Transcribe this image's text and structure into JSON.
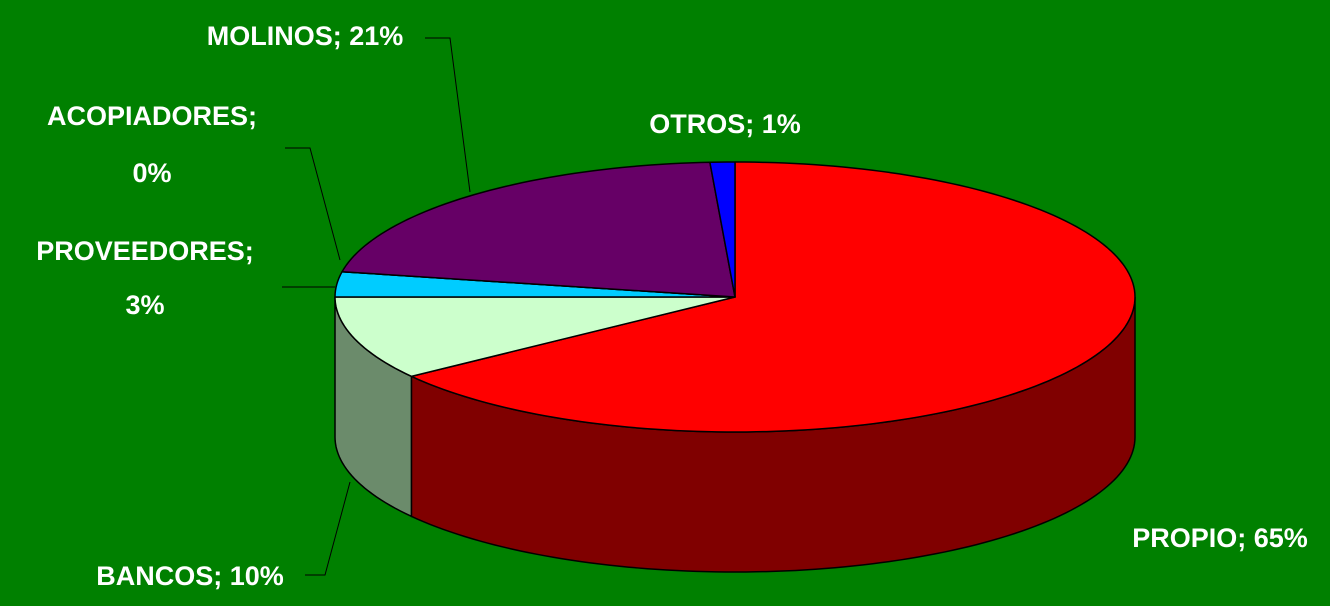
{
  "chart_data": {
    "type": "pie3d",
    "values": [
      65,
      10,
      3,
      0,
      21,
      1
    ],
    "labels": [
      [
        "PROPIO; 65%"
      ],
      [
        "BANCOS; 10%"
      ],
      [
        "PROVEEDORES;",
        "3%"
      ],
      [
        "ACOPIADORES;",
        "0%"
      ],
      [
        "MOLINOS; 21%"
      ],
      [
        "OTROS; 1%"
      ]
    ],
    "colors": [
      "#ff0000",
      "#ccffcc",
      "#00ccff",
      "#ffff99",
      "#660066",
      "#0000ff"
    ],
    "side_colors": [
      "#800000",
      "#6b8b6b",
      "#0099cc",
      "#999966",
      "#330033",
      "#000080"
    ],
    "background": "#008000"
  }
}
